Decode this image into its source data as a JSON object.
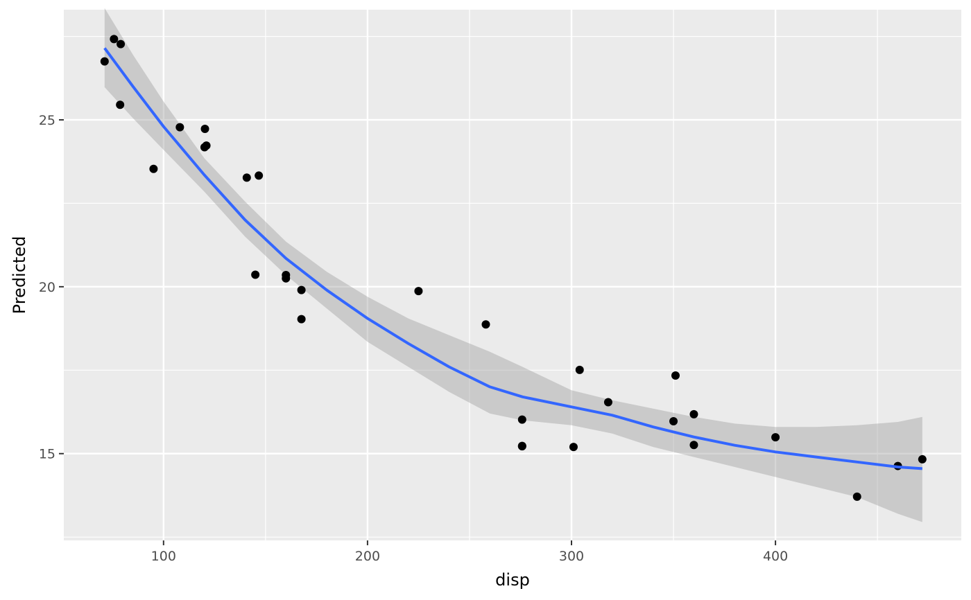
{
  "chart_data": {
    "type": "scatter",
    "xlabel": "disp",
    "ylabel": "Predicted",
    "xlim": [
      51.1,
      491.1
    ],
    "ylim": [
      12.4,
      28.3
    ],
    "x_ticks": [
      100,
      200,
      300,
      400
    ],
    "y_ticks": [
      15,
      20,
      25
    ],
    "grid": true,
    "legend": "none",
    "colors": {
      "panel": "#ebebeb",
      "grid": "#ffffff",
      "points": "#000000",
      "smooth_line": "#3366ff",
      "ribbon": "#999999"
    },
    "points": [
      {
        "x": 71.1,
        "y": 26.75
      },
      {
        "x": 75.7,
        "y": 27.42
      },
      {
        "x": 78.7,
        "y": 25.45
      },
      {
        "x": 79.0,
        "y": 27.27
      },
      {
        "x": 95.1,
        "y": 23.53
      },
      {
        "x": 108.0,
        "y": 24.78
      },
      {
        "x": 120.1,
        "y": 24.18
      },
      {
        "x": 120.3,
        "y": 24.73
      },
      {
        "x": 121.0,
        "y": 24.23
      },
      {
        "x": 140.8,
        "y": 23.27
      },
      {
        "x": 146.7,
        "y": 23.33
      },
      {
        "x": 145.0,
        "y": 20.36
      },
      {
        "x": 160.0,
        "y": 20.35
      },
      {
        "x": 160.0,
        "y": 20.25
      },
      {
        "x": 167.6,
        "y": 19.9
      },
      {
        "x": 167.6,
        "y": 19.03
      },
      {
        "x": 225.0,
        "y": 19.87
      },
      {
        "x": 258.0,
        "y": 18.87
      },
      {
        "x": 275.8,
        "y": 16.02
      },
      {
        "x": 275.8,
        "y": 15.23
      },
      {
        "x": 275.8,
        "y": 15.22
      },
      {
        "x": 301.0,
        "y": 15.2
      },
      {
        "x": 304.0,
        "y": 17.51
      },
      {
        "x": 318.0,
        "y": 16.54
      },
      {
        "x": 350.0,
        "y": 15.97
      },
      {
        "x": 351.0,
        "y": 17.34
      },
      {
        "x": 360.0,
        "y": 16.18
      },
      {
        "x": 360.0,
        "y": 15.26
      },
      {
        "x": 400.0,
        "y": 15.49
      },
      {
        "x": 440.0,
        "y": 13.71
      },
      {
        "x": 460.0,
        "y": 14.63
      },
      {
        "x": 472.0,
        "y": 14.83
      }
    ],
    "smooth": [
      {
        "x": 71.1,
        "y": 27.15,
        "ymin": 25.98,
        "ymax": 28.35
      },
      {
        "x": 85,
        "y": 26.0,
        "ymin": 25.05,
        "ymax": 26.95
      },
      {
        "x": 100,
        "y": 24.8,
        "ymin": 24.1,
        "ymax": 25.55
      },
      {
        "x": 120,
        "y": 23.35,
        "ymin": 22.85,
        "ymax": 23.85
      },
      {
        "x": 140,
        "y": 22.0,
        "ymin": 21.5,
        "ymax": 22.55
      },
      {
        "x": 160,
        "y": 20.85,
        "ymin": 20.35,
        "ymax": 21.35
      },
      {
        "x": 180,
        "y": 19.9,
        "ymin": 19.35,
        "ymax": 20.45
      },
      {
        "x": 200,
        "y": 19.05,
        "ymin": 18.35,
        "ymax": 19.7
      },
      {
        "x": 220,
        "y": 18.3,
        "ymin": 17.6,
        "ymax": 19.05
      },
      {
        "x": 240,
        "y": 17.6,
        "ymin": 16.85,
        "ymax": 18.55
      },
      {
        "x": 260,
        "y": 17.0,
        "ymin": 16.2,
        "ymax": 18.05
      },
      {
        "x": 276,
        "y": 16.7,
        "ymin": 16.0,
        "ymax": 17.6
      },
      {
        "x": 300,
        "y": 16.4,
        "ymin": 15.85,
        "ymax": 16.9
      },
      {
        "x": 320,
        "y": 16.15,
        "ymin": 15.6,
        "ymax": 16.6
      },
      {
        "x": 340,
        "y": 15.8,
        "ymin": 15.2,
        "ymax": 16.35
      },
      {
        "x": 360,
        "y": 15.5,
        "ymin": 14.9,
        "ymax": 16.1
      },
      {
        "x": 380,
        "y": 15.25,
        "ymin": 14.6,
        "ymax": 15.9
      },
      {
        "x": 400,
        "y": 15.05,
        "ymin": 14.3,
        "ymax": 15.8
      },
      {
        "x": 420,
        "y": 14.9,
        "ymin": 14.0,
        "ymax": 15.8
      },
      {
        "x": 440,
        "y": 14.75,
        "ymin": 13.7,
        "ymax": 15.85
      },
      {
        "x": 460,
        "y": 14.6,
        "ymin": 13.2,
        "ymax": 15.95
      },
      {
        "x": 472,
        "y": 14.55,
        "ymin": 12.95,
        "ymax": 16.1
      }
    ]
  }
}
